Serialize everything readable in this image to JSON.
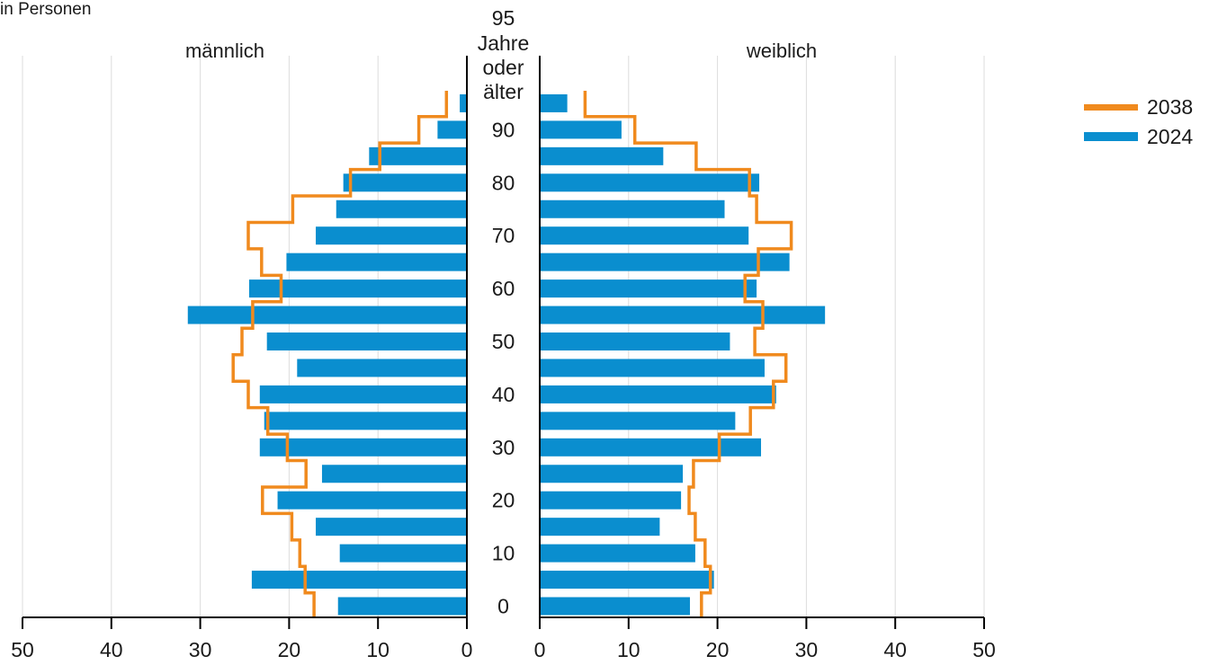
{
  "chart_data": {
    "type": "bar",
    "subtype": "population-pyramid",
    "unit_label": "in Personen",
    "left_label": "männlich",
    "right_label": "weiblich",
    "top_age_label_lines": [
      "95",
      "Jahre",
      "oder",
      "älter"
    ],
    "age_ticks": [
      "0",
      "10",
      "20",
      "30",
      "40",
      "50",
      "60",
      "70",
      "80",
      "90"
    ],
    "x_ticks": [
      "50",
      "40",
      "30",
      "20",
      "10",
      "0"
    ],
    "xlim": [
      0,
      50
    ],
    "grid": true,
    "legend_position": "top-right",
    "colors": {
      "2024": "#0a8ecf",
      "2038": "#f08a1e",
      "axis": "#000000",
      "grid": "#dcdcdc"
    },
    "age_groups": [
      "0",
      "5",
      "10",
      "15",
      "20",
      "25",
      "30",
      "35",
      "40",
      "45",
      "50",
      "55",
      "60",
      "65",
      "70",
      "75",
      "80",
      "85",
      "90",
      "95"
    ],
    "series": [
      {
        "name": "2024",
        "mark": "bar",
        "male": [
          14.5,
          24.2,
          14.3,
          17.0,
          21.3,
          16.3,
          23.3,
          22.8,
          23.3,
          19.1,
          22.5,
          31.4,
          24.5,
          20.3,
          17.0,
          14.7,
          13.9,
          11.0,
          3.3,
          0.8
        ],
        "female": [
          16.9,
          19.6,
          17.5,
          13.5,
          15.9,
          16.1,
          24.9,
          22.0,
          26.6,
          25.3,
          21.4,
          32.1,
          24.4,
          28.1,
          23.5,
          20.8,
          24.7,
          13.9,
          9.2,
          3.1
        ]
      },
      {
        "name": "2038",
        "mark": "step-line",
        "male": [
          17.2,
          18.2,
          18.8,
          19.7,
          23.0,
          18.1,
          20.2,
          22.4,
          24.6,
          26.3,
          25.3,
          24.1,
          20.9,
          23.1,
          24.6,
          19.6,
          13.1,
          9.8,
          5.4,
          2.3
        ],
        "female": [
          18.2,
          19.2,
          18.6,
          17.5,
          16.8,
          17.3,
          20.2,
          23.7,
          26.3,
          27.7,
          24.2,
          25.1,
          23.1,
          24.6,
          28.3,
          24.4,
          23.6,
          17.6,
          10.7,
          5.1
        ]
      }
    ],
    "legend": [
      "2038",
      "2024"
    ]
  }
}
